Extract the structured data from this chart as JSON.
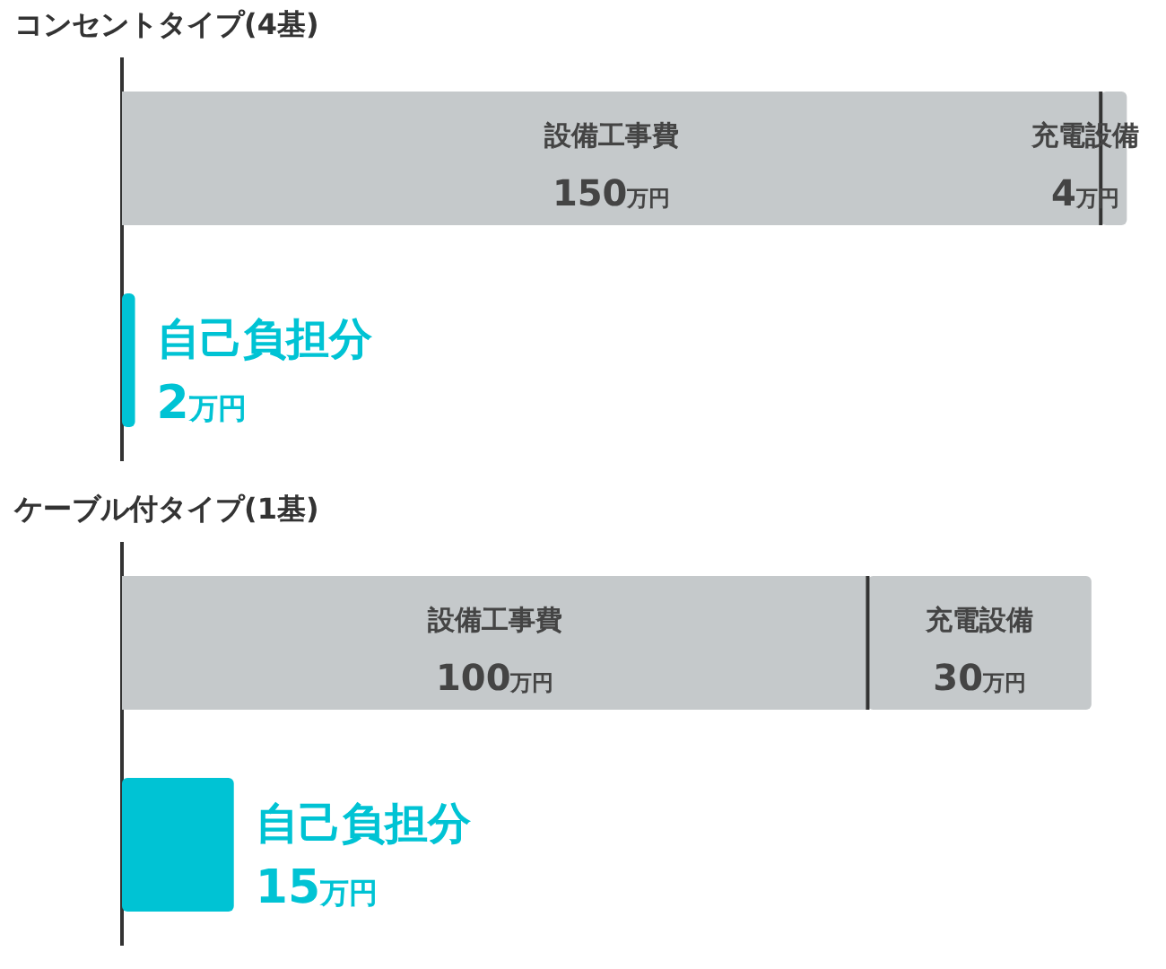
{
  "chart_data": [
    {
      "type": "bar",
      "title": "コンセントタイプ(4基)",
      "orientation": "horizontal",
      "stacked": true,
      "categories": [
        null,
        null
      ],
      "tick_labels": false,
      "legend": false,
      "series": [
        {
          "name": "設備工事費",
          "color": "#c5c9cb",
          "values": [
            150,
            null
          ],
          "value_labels": [
            "150万円",
            null
          ]
        },
        {
          "name": "充電設備",
          "color": "#c5c9cb",
          "values": [
            4,
            null
          ],
          "value_labels": [
            "4万円",
            null
          ]
        },
        {
          "name": "自己負担分",
          "color": "#00c3d4",
          "values": [
            null,
            2
          ],
          "value_labels": [
            null,
            "2万円"
          ]
        }
      ]
    },
    {
      "type": "bar",
      "title": "ケーブル付タイプ(1基)",
      "orientation": "horizontal",
      "stacked": true,
      "categories": [
        null,
        null
      ],
      "tick_labels": false,
      "legend": false,
      "series": [
        {
          "name": "設備工事費",
          "color": "#c5c9cb",
          "values": [
            100,
            null
          ],
          "value_labels": [
            "100万円",
            null
          ]
        },
        {
          "name": "充電設備",
          "color": "#c5c9cb",
          "values": [
            30,
            null
          ],
          "value_labels": [
            "30万円",
            null
          ]
        },
        {
          "name": "自己負担分",
          "color": "#00c3d4",
          "values": [
            null,
            15
          ],
          "value_labels": [
            null,
            "15万円"
          ]
        }
      ]
    }
  ]
}
